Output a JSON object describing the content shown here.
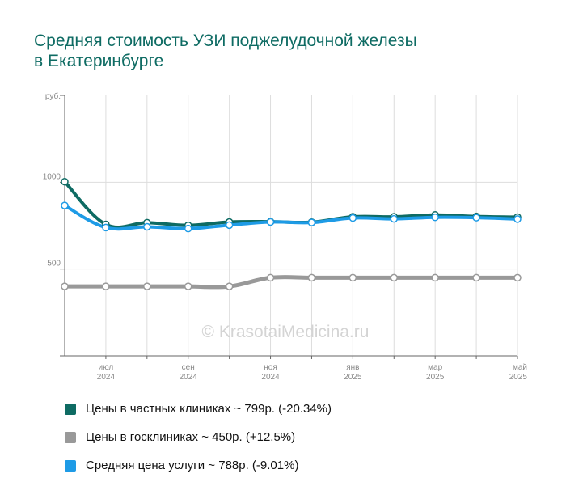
{
  "title_lines": [
    "Средняя стоимость УЗИ поджелудочной железы",
    "в Екатеринбурге"
  ],
  "watermark": "© KrasotaiMedicina.ru",
  "chart_data": {
    "type": "line",
    "title": "Средняя стоимость УЗИ поджелудочной железы в Екатеринбурге",
    "ylabel": "руб.",
    "ylim": [
      0,
      1500
    ],
    "y_ticks": [
      {
        "value": 500,
        "label": "500"
      },
      {
        "value": 1000,
        "label": "1000"
      }
    ],
    "x": [
      0,
      1,
      2,
      3,
      4,
      5,
      6,
      7,
      8,
      9,
      10,
      11
    ],
    "x_range": [
      0,
      11
    ],
    "x_tick_labels": [
      {
        "x": 1,
        "line1": "июл",
        "line2": "2024"
      },
      {
        "x": 3,
        "line1": "сен",
        "line2": "2024"
      },
      {
        "x": 5,
        "line1": "ноя",
        "line2": "2024"
      },
      {
        "x": 7,
        "line1": "янв",
        "line2": "2025"
      },
      {
        "x": 9,
        "line1": "мар",
        "line2": "2025"
      },
      {
        "x": 11,
        "line1": "май",
        "line2": "2025"
      }
    ],
    "grid": true,
    "legend_position": "bottom",
    "series": [
      {
        "name": "Цены в частных клиниках",
        "color": "#0e6b63",
        "width": 4,
        "values": [
          1003,
          757,
          767,
          752,
          771,
          773,
          770,
          801,
          801,
          812,
          803,
          799
        ]
      },
      {
        "name": "Цены в госклиниках",
        "color": "#999999",
        "width": 5,
        "values": [
          400,
          400,
          400,
          400,
          400,
          450,
          450,
          450,
          450,
          450,
          450,
          450
        ]
      },
      {
        "name": "Средняя цена услуги",
        "color": "#1e9be6",
        "width": 4,
        "values": [
          866,
          739,
          743,
          733,
          753,
          771,
          768,
          794,
          789,
          798,
          796,
          788
        ]
      }
    ]
  },
  "legend": [
    {
      "text": "Цены в частных клиниках ~ 799р. (-20.34%)",
      "color": "#0e6b63"
    },
    {
      "text": "Цены в госклиниках ~ 450р. (+12.5%)",
      "color": "#999999"
    },
    {
      "text": "Средняя цена услуги ~ 788р. (-9.01%)",
      "color": "#1e9be6"
    }
  ]
}
